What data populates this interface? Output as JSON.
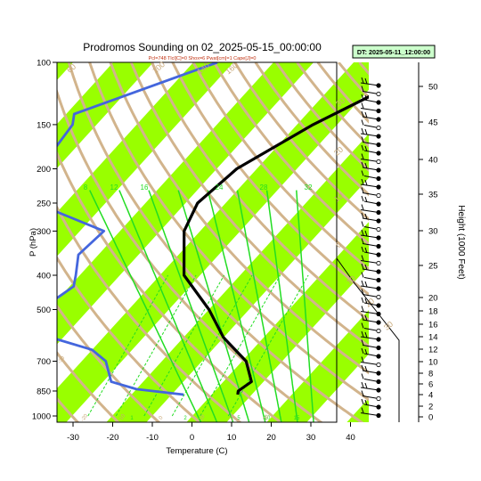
{
  "chart_data": {
    "type": "line",
    "title": "Prodromos Sounding on 02_2025-05-15_00:00:00",
    "subtitle": "Pcl=748 Tlcl[C]=0 Shox=6 Pwat[cm]=1 Cape[J]=0",
    "badge": "DT: 2025-05-11_12:00:00",
    "xlabel": "Temperature (C)",
    "ylabel": "P (hPa)",
    "y2label": "Height (1000 Feet)",
    "x_ticks": [
      "-30",
      "-20",
      "-10",
      "0",
      "10",
      "20",
      "30",
      "40"
    ],
    "p_ticks": [
      "100",
      "150",
      "200",
      "250",
      "300",
      "400",
      "500",
      "700",
      "850",
      "1000"
    ],
    "p_tick_values": [
      100,
      150,
      200,
      250,
      300,
      400,
      500,
      700,
      850,
      1000
    ],
    "height_ticks": [
      "50",
      "45",
      "40",
      "35",
      "30",
      "25",
      "20",
      "18",
      "16",
      "14",
      "12",
      "10",
      "8",
      "6",
      "4",
      "2",
      "0"
    ],
    "isotherm_labels": [
      "-30",
      "-20",
      "-10",
      "0",
      "10",
      "20",
      "30"
    ],
    "mixing_ratio_labels": [
      "1",
      "2",
      "5",
      "10",
      "15"
    ],
    "moist_adiabat_labels": [
      "8",
      "12",
      "16",
      "24",
      "28",
      "32"
    ],
    "dry_adiabat_labels": [
      "60",
      "100",
      "140",
      "160",
      "30",
      "20",
      "10",
      "0",
      "10",
      "20",
      "30"
    ],
    "xlim": [
      -33,
      45
    ],
    "ylim": [
      1050,
      100
    ],
    "series": [
      {
        "color": "#000000",
        "p": [
          100,
          150,
          200,
          250,
          300,
          400,
          500,
          600,
          700,
          800,
          850,
          870
        ],
        "values": [
          -19,
          -36,
          -45,
          -47,
          -44,
          -34,
          -20,
          -10,
          1,
          7,
          5.8,
          6.5
        ]
      },
      {
        "color": "#4466dd",
        "p": [
          100,
          140,
          150,
          175,
          200,
          240,
          250,
          265,
          300,
          350,
          400,
          430,
          500,
          550,
          600,
          650,
          700,
          800,
          840,
          870
        ],
        "values": [
          -74,
          -98,
          -96,
          -95,
          -97,
          -103,
          -97,
          -80,
          -64,
          -65,
          -61,
          -59,
          -62,
          -64,
          -53,
          -40,
          -34,
          -28,
          -20,
          -7
        ]
      }
    ],
    "colors": {
      "band": "#99ff00",
      "dry_adiabat": "#d2b48c",
      "moist_adiabat": "#22dd22",
      "mixing_ratio": "#22dd22",
      "temperature": "#000000",
      "dewpoint": "#4466dd",
      "badge_bg": "#ccffcc"
    }
  }
}
